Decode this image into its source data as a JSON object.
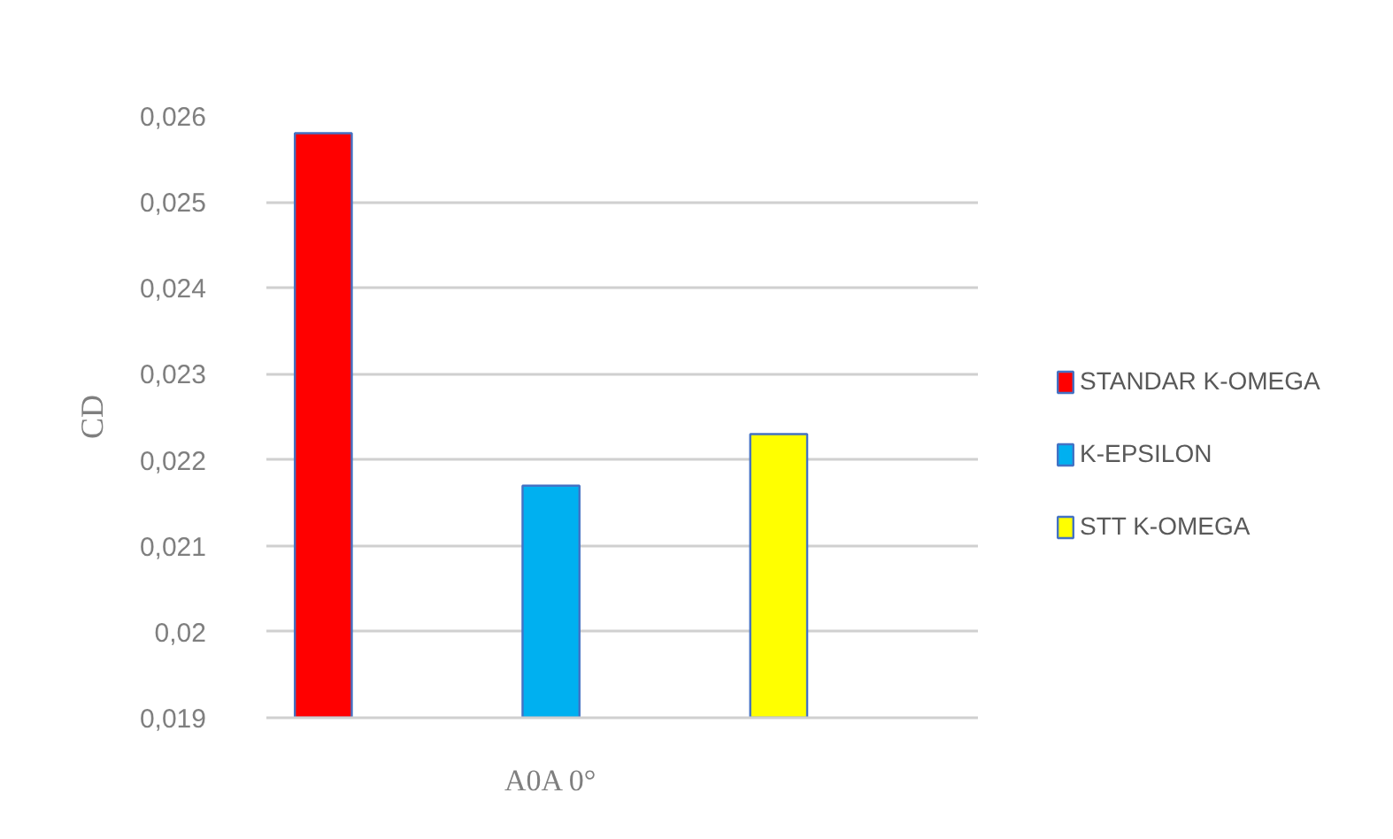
{
  "chart_data": {
    "type": "bar",
    "ylabel": "CD",
    "categories": [
      "A0A 0°"
    ],
    "series": [
      {
        "name": "STANDAR K-OMEGA",
        "color": "#ff0000",
        "values": [
          0.0258
        ]
      },
      {
        "name": "K-EPSILON",
        "color": "#00b0f0",
        "values": [
          0.0217
        ]
      },
      {
        "name": "STT K-OMEGA",
        "color": "#ffff00",
        "values": [
          0.0223
        ]
      }
    ],
    "ylim": [
      0.019,
      0.026
    ],
    "yticks": [
      {
        "value": 0.019,
        "label": "0,019"
      },
      {
        "value": 0.02,
        "label": "0,02"
      },
      {
        "value": 0.021,
        "label": "0,021"
      },
      {
        "value": 0.022,
        "label": "0,022"
      },
      {
        "value": 0.023,
        "label": "0,023"
      },
      {
        "value": 0.024,
        "label": "0,024"
      },
      {
        "value": 0.025,
        "label": "0,025"
      },
      {
        "value": 0.026,
        "label": "0,026"
      }
    ],
    "grid": "y",
    "legend": "right"
  }
}
